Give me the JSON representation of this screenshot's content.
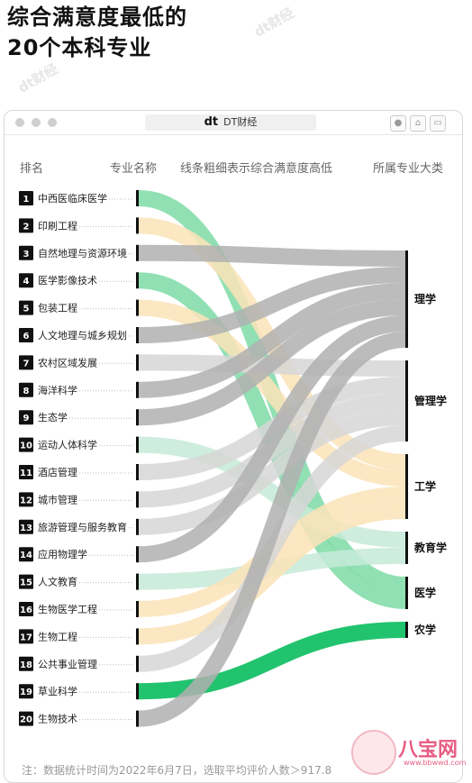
{
  "title_line1": "综合满意度最低的",
  "title_line2": "20个本科专业",
  "window": {
    "app_name": "DT财经",
    "logo": "dt"
  },
  "headers": {
    "rank": "排名",
    "major": "专业名称",
    "line": "线条粗细表示综合满意度高低",
    "category": "所属专业大类"
  },
  "colors": {
    "理学": "#b0b0b0",
    "管理学": "#d6d6d6",
    "工学": "#fbe3b8",
    "教育学": "#c6ead8",
    "医学": "#7edaa6",
    "农学": "#22c36e"
  },
  "chart_data": {
    "type": "sankey",
    "categories": [
      "理学",
      "管理学",
      "工学",
      "教育学",
      "医学",
      "农学"
    ],
    "majors": [
      {
        "rank": 1,
        "name": "中西医临床医学",
        "category": "医学"
      },
      {
        "rank": 2,
        "name": "印刷工程",
        "category": "工学"
      },
      {
        "rank": 3,
        "name": "自然地理与资源环境",
        "category": "理学"
      },
      {
        "rank": 4,
        "name": "医学影像技术",
        "category": "医学"
      },
      {
        "rank": 5,
        "name": "包装工程",
        "category": "工学"
      },
      {
        "rank": 6,
        "name": "人文地理与城乡规划",
        "category": "理学"
      },
      {
        "rank": 7,
        "name": "农村区域发展",
        "category": "管理学"
      },
      {
        "rank": 8,
        "name": "海洋科学",
        "category": "理学"
      },
      {
        "rank": 9,
        "name": "生态学",
        "category": "理学"
      },
      {
        "rank": 10,
        "name": "运动人体科学",
        "category": "教育学"
      },
      {
        "rank": 11,
        "name": "酒店管理",
        "category": "管理学"
      },
      {
        "rank": 12,
        "name": "城市管理",
        "category": "管理学"
      },
      {
        "rank": 13,
        "name": "旅游管理与服务教育",
        "category": "管理学"
      },
      {
        "rank": 14,
        "name": "应用物理学",
        "category": "理学"
      },
      {
        "rank": 15,
        "name": "人文教育",
        "category": "教育学"
      },
      {
        "rank": 16,
        "name": "生物医学工程",
        "category": "工学"
      },
      {
        "rank": 17,
        "name": "生物工程",
        "category": "工学"
      },
      {
        "rank": 18,
        "name": "公共事业管理",
        "category": "管理学"
      },
      {
        "rank": 19,
        "name": "草业科学",
        "category": "农学"
      },
      {
        "rank": 20,
        "name": "生物技术",
        "category": "理学"
      }
    ]
  },
  "note": "注：数据统计时间为2022年6月7日，选取平均评价人数＞917.8",
  "watermark": "dt财经",
  "badge": {
    "brand": "八宝网",
    "url": "www.bbwwd.com"
  }
}
